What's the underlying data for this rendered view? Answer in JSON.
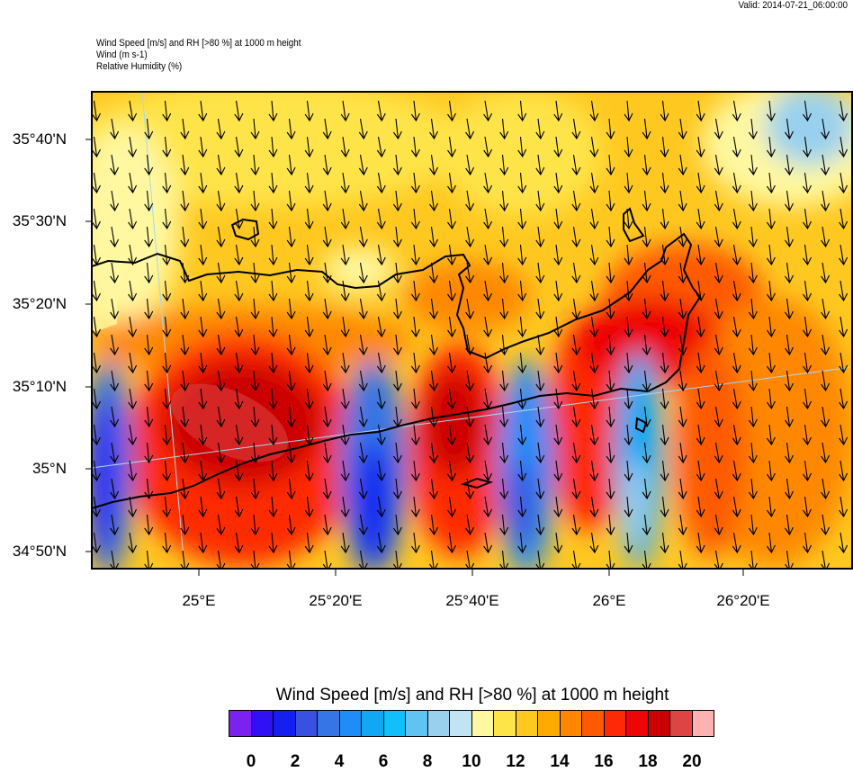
{
  "valid_time": "Valid: 2014-07-21_06:00:00",
  "header_lines": [
    "Wind Speed [m/s] and RH [>80 %] at 1000 m height",
    "Wind   (m s-1)",
    "Relative Humidity   (%)"
  ],
  "lat_labels": [
    "35°40'N",
    "35°30'N",
    "35°20'N",
    "35°10'N",
    "35°N",
    "34°50'N"
  ],
  "lon_labels": [
    "25°E",
    "25°20'E",
    "25°40'E",
    "26°E",
    "26°20'E"
  ],
  "colorbar": {
    "title": "Wind Speed [m/s] and RH [>80 %] at 1000 m height",
    "colors": [
      "#7a22ee",
      "#3010f5",
      "#1520f0",
      "#3a50e0",
      "#3575e5",
      "#208cf8",
      "#10a8f5",
      "#10c0fa",
      "#60c4f2",
      "#98d0ee",
      "#c0e4f4",
      "#fff8a0",
      "#ffe448",
      "#ffc820",
      "#ffaa00",
      "#ff8800",
      "#ff5a00",
      "#ff2a05",
      "#ee0505",
      "#cc0000",
      "#dd4444",
      "#ffb0b0"
    ],
    "labels": [
      "0",
      "2",
      "4",
      "6",
      "8",
      "10",
      "12",
      "14",
      "16",
      "18",
      "20"
    ]
  },
  "wind_direction": "north to south (arrows pointing down, slight eastward tilt)"
}
